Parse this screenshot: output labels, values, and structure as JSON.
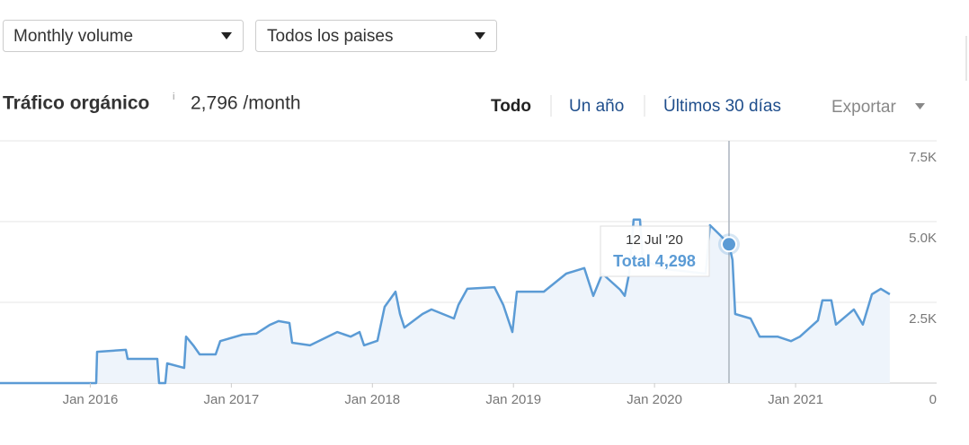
{
  "controls": {
    "volume": "Monthly volume",
    "country": "Todos los paises"
  },
  "header": {
    "title": "Tráfico orgánico",
    "info": "i",
    "summary": "2,796 /month"
  },
  "tabs": [
    "Todo",
    "Un año",
    "Últimos 30 días"
  ],
  "export": "Exportar",
  "chart_data": {
    "type": "line",
    "x": [
      2015.36,
      2016.042,
      2016.048,
      2016.252,
      2016.265,
      2016.475,
      2016.488,
      2016.532,
      2016.545,
      2016.666,
      2016.679,
      2016.73,
      2016.775,
      2016.889,
      2016.921,
      2017.08,
      2017.176,
      2017.272,
      2017.335,
      2017.412,
      2017.431,
      2017.558,
      2017.75,
      2017.845,
      2017.909,
      2017.941,
      2018.036,
      2018.087,
      2018.164,
      2018.196,
      2018.227,
      2018.355,
      2018.419,
      2018.578,
      2018.61,
      2018.673,
      2018.865,
      2018.928,
      2018.992,
      2019.024,
      2019.215,
      2019.374,
      2019.502,
      2019.566,
      2019.63,
      2019.757,
      2019.789,
      2019.82,
      2019.852,
      2019.897,
      2019.916,
      2020.075,
      2020.362,
      2020.393,
      2020.458,
      2020.528,
      2020.553,
      2020.572,
      2020.681,
      2020.745,
      2020.872,
      2020.967,
      2021.031,
      2021.158,
      2021.19,
      2021.254,
      2021.286,
      2021.413,
      2021.477,
      2021.541,
      2021.604,
      2021.668
    ],
    "values": [
      0,
      0,
      970,
      1030,
      750,
      750,
      0,
      0,
      610,
      470,
      1440,
      1170,
      890,
      890,
      1300,
      1500,
      1530,
      1800,
      1920,
      1860,
      1250,
      1170,
      1580,
      1440,
      1580,
      1170,
      1310,
      2360,
      2830,
      2140,
      1720,
      2140,
      2280,
      2000,
      2420,
      2920,
      2970,
      2420,
      1580,
      2830,
      2830,
      3390,
      3560,
      2700,
      3390,
      2890,
      2700,
      3390,
      5060,
      5060,
      3810,
      3530,
      3390,
      4890,
      4610,
      4298,
      3810,
      2140,
      2000,
      1440,
      1440,
      1300,
      1440,
      1940,
      2560,
      2560,
      1810,
      2280,
      1810,
      2750,
      2920,
      2750
    ],
    "color": "#5b9bd5",
    "fill": "#eef4fb",
    "xlim": [
      2015.36,
      2022.0
    ],
    "ylim": [
      0,
      7500
    ],
    "xticks": [
      {
        "value": 2016,
        "label": "Jan 2016"
      },
      {
        "value": 2017,
        "label": "Jan 2017"
      },
      {
        "value": 2018,
        "label": "Jan 2018"
      },
      {
        "value": 2019,
        "label": "Jan 2019"
      },
      {
        "value": 2020,
        "label": "Jan 2020"
      },
      {
        "value": 2021,
        "label": "Jan 2021"
      }
    ],
    "yticks": [
      0,
      {
        "value": 2500,
        "label": "2.5K"
      },
      {
        "value": 5000,
        "label": "5.0K"
      },
      {
        "value": 7500,
        "label": "7.5K"
      }
    ],
    "grid": true,
    "crosshair_x": 2020.528,
    "tooltip": {
      "date": "12 Jul '20",
      "label": "Total 4,298"
    }
  }
}
